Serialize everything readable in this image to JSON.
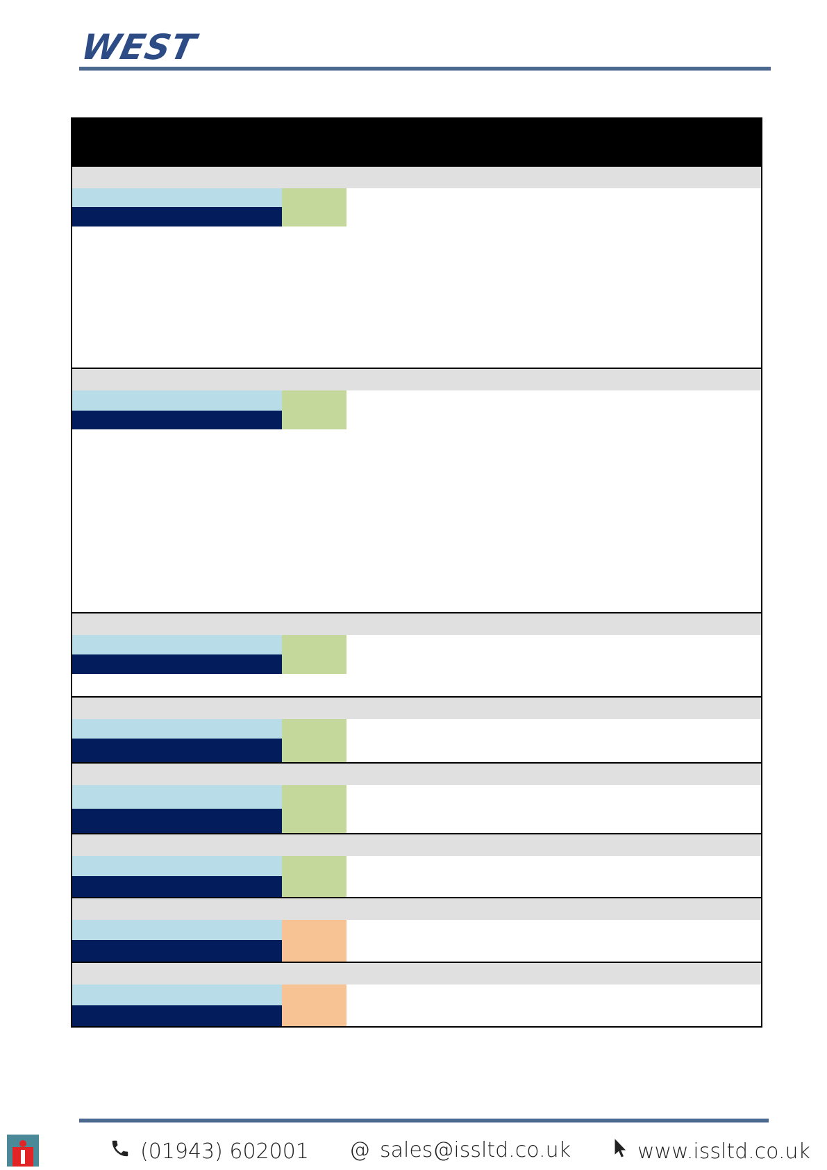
{
  "brand": {
    "logo_text": "WEST",
    "logo_color": "#2d4c86"
  },
  "colors": {
    "rule": "#4c6a90",
    "section_band": "#e0e0e0",
    "light_band": "#b8dde8",
    "dark_band": "#021c5c",
    "tag_green": "#c5d89c",
    "tag_orange": "#f8c394"
  },
  "footer": {
    "phone": "(01943) 602001",
    "email": "sales@issltd.co.uk",
    "website": "www.issltd.co.uk",
    "phone_icon": "phone-icon",
    "email_icon": "at-icon",
    "website_icon": "cursor-icon",
    "badge_icon": "info-badge-icon"
  }
}
